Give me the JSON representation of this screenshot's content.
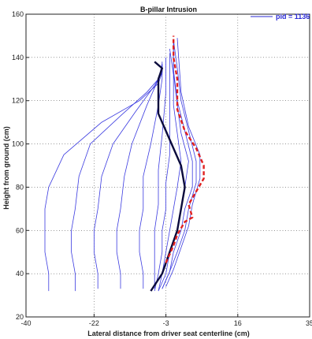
{
  "chart_data": {
    "type": "line",
    "title": "B-pillar Intrusion",
    "xlabel": "Lateral distance from driver seat centerline (cm)",
    "ylabel": "Height from ground (cm)",
    "xlim": [
      -40,
      35
    ],
    "ylim": [
      20,
      160
    ],
    "xticks": [
      -40,
      -22,
      -3,
      16,
      35
    ],
    "yticks": [
      20,
      40,
      60,
      80,
      100,
      120,
      140,
      160
    ],
    "grid": true,
    "legend": {
      "placement": "top-right",
      "label": "pid = 1136",
      "color": "#2b2bd6"
    },
    "colors": {
      "thin": "#3a3ae0",
      "bold": "#0a0a3c",
      "dashed": "#e02020"
    },
    "thin_series": [
      {
        "x": [
          -34,
          -34,
          -35,
          -35,
          -35,
          -34,
          -30,
          -20,
          -10,
          -5,
          -4,
          -4
        ],
        "y": [
          32,
          40,
          50,
          60,
          70,
          80,
          95,
          110,
          120,
          128,
          133,
          136
        ]
      },
      {
        "x": [
          -27,
          -27,
          -28,
          -28,
          -27,
          -26,
          -23,
          -15,
          -8,
          -5,
          -4
        ],
        "y": [
          32,
          40,
          50,
          60,
          70,
          85,
          100,
          113,
          124,
          130,
          135
        ]
      },
      {
        "x": [
          -21,
          -21,
          -22,
          -22,
          -21,
          -20,
          -17,
          -11,
          -6,
          -4,
          -4
        ],
        "y": [
          33,
          40,
          50,
          60,
          70,
          85,
          100,
          115,
          127,
          133,
          137
        ]
      },
      {
        "x": [
          -15,
          -15,
          -16,
          -16,
          -15,
          -14,
          -12,
          -8,
          -5,
          -4
        ],
        "y": [
          33,
          40,
          50,
          60,
          70,
          85,
          100,
          118,
          130,
          137
        ]
      },
      {
        "x": [
          -9,
          -9,
          -10,
          -10,
          -9,
          -9,
          -7,
          -5,
          -4,
          -4
        ],
        "y": [
          33,
          40,
          50,
          60,
          70,
          85,
          100,
          118,
          130,
          138
        ]
      },
      {
        "x": [
          -6,
          -6,
          -6,
          -6,
          -5,
          -5,
          -4,
          -3,
          -3
        ],
        "y": [
          33,
          42,
          50,
          60,
          72,
          88,
          104,
          124,
          140
        ]
      },
      {
        "x": [
          -6,
          -5,
          -4,
          -4,
          -3,
          -3,
          -2,
          -2,
          -2,
          -2
        ],
        "y": [
          32,
          40,
          50,
          60,
          70,
          82,
          95,
          110,
          128,
          142
        ]
      },
      {
        "x": [
          -5,
          -4,
          -3,
          -2,
          -1,
          0,
          1,
          0,
          -1,
          -1,
          -2
        ],
        "y": [
          32,
          40,
          50,
          60,
          70,
          80,
          92,
          105,
          118,
          132,
          144
        ]
      },
      {
        "x": [
          -5,
          -3,
          -2,
          0,
          1,
          2,
          3,
          1,
          0,
          -1,
          -1
        ],
        "y": [
          32,
          40,
          50,
          60,
          70,
          80,
          92,
          105,
          118,
          133,
          146
        ]
      },
      {
        "x": [
          -4,
          -2,
          -1,
          1,
          2,
          4,
          4,
          2,
          0,
          -1,
          -1
        ],
        "y": [
          33,
          41,
          50,
          60,
          70,
          80,
          92,
          106,
          120,
          134,
          147
        ]
      },
      {
        "x": [
          -4,
          -2,
          0,
          2,
          3,
          5,
          5,
          3,
          1,
          0,
          -1
        ],
        "y": [
          33,
          41,
          50,
          60,
          70,
          82,
          92,
          106,
          120,
          135,
          148
        ]
      },
      {
        "x": [
          -3,
          -1,
          1,
          3,
          4,
          6,
          6,
          3,
          1,
          0
        ],
        "y": [
          34,
          42,
          52,
          62,
          72,
          84,
          95,
          108,
          124,
          149
        ]
      }
    ],
    "bold_series": {
      "x": [
        -7,
        -4,
        -2,
        0,
        1,
        2,
        1,
        -1,
        -3,
        -5,
        -5,
        -5,
        -4,
        -6
      ],
      "y": [
        32,
        40,
        50,
        60,
        70,
        80,
        90,
        98,
        106,
        114,
        122,
        130,
        135,
        138
      ]
    },
    "dashed_series": {
      "x": [
        -3,
        -1,
        0,
        2,
        4,
        3,
        5,
        7,
        7,
        5,
        2,
        0,
        0,
        -1,
        -1
      ],
      "y": [
        45,
        53,
        58,
        64,
        66,
        72,
        78,
        84,
        90,
        98,
        106,
        116,
        130,
        140,
        150
      ]
    }
  }
}
